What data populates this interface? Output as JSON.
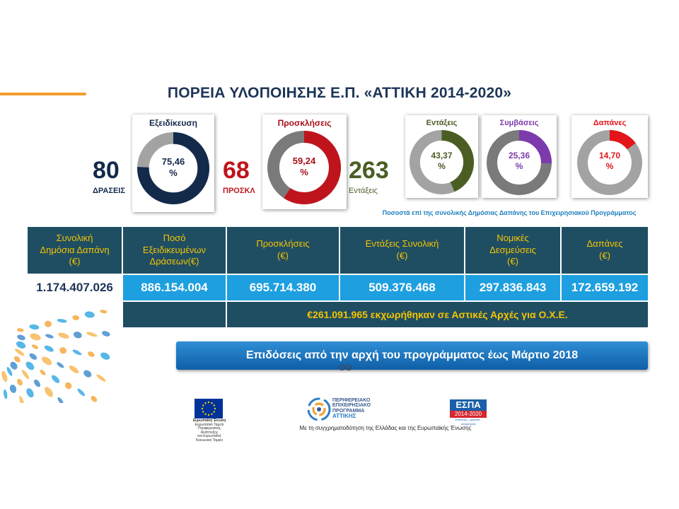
{
  "title": "ΠΟΡΕΙΑ ΥΛΟΠΟΙΗΣΗΣ Ε.Π. «ΑΤΤΙΚΗ 2014-2020»",
  "summary": {
    "actions": {
      "number": "80",
      "label": "ΔΡΑΣΕΙΣ"
    },
    "calls": {
      "number": "68",
      "label": "ΠΡΟΣΚΛ"
    },
    "inclusions": {
      "number": "263",
      "label": "Εντάξεις"
    }
  },
  "gauges": {
    "specialization": {
      "label": "Εξειδίκευση",
      "value_text": "75,46",
      "unit": "%",
      "value": 75.46,
      "color": "#132a4a",
      "track": "#a3a3a3"
    },
    "calls": {
      "label": "Προσκλήσεις",
      "value_text": "59,24",
      "unit": "%",
      "value": 59.24,
      "color": "#c0141c",
      "track": "#7a7a7a"
    },
    "inclusions": {
      "label": "Εντάξεις",
      "value_text": "43,37",
      "unit": "%",
      "value": 43.37,
      "color": "#4a5e23",
      "track": "#a3a3a3"
    },
    "contracts": {
      "label": "Συμβάσεις",
      "value_text": "25,36",
      "unit": "%",
      "value": 25.36,
      "color": "#7d3aad",
      "track": "#7a7a7a"
    },
    "expenditure": {
      "label": "Δαπάνες",
      "value_text": "14,70",
      "unit": "%",
      "value": 14.7,
      "color": "#e3151a",
      "track": "#a3a3a3"
    }
  },
  "note": "Ποσοστά επί της συνολικής Δημόσιας Δαπάνης του Επιχειρησιακού Προγράμματος",
  "table": {
    "headers": [
      [
        "Συνολική",
        "Δημόσια Δαπάνη",
        "(€)"
      ],
      [
        "Ποσό",
        "Εξειδικευμένων",
        "Δράσεων(€)"
      ],
      [
        "Προσκλήσεις",
        "(€)"
      ],
      [
        "Εντάξεις Συνολική",
        "(€)"
      ],
      [
        "Νομικές",
        "Δεσμεύσεις",
        "(€)"
      ],
      [
        "Δαπάνες",
        "(€)"
      ]
    ],
    "values": [
      "1.174.407.026",
      "886.154.004",
      "695.714.380",
      "509.376.468",
      "297.836.843",
      "172.659.192"
    ],
    "footer": "€261.091.965 εκχωρήθηκαν σε Αστικές Αρχές για Ο.Χ.Ε."
  },
  "banner": "Επιδόσεις από την αρχή του προγράμματος έως Μάρτιο 2018",
  "banner_glyph": "ʘʘ",
  "logos": {
    "eu_caption_1": "Ευρωπαϊκή Ένωση",
    "eu_caption_2": "Ευρωπαϊκό Ταμείο Περιφερειακής Ανάπτυξης",
    "eu_caption_3": "και Ευρωπαϊκό Κοινωνικό Ταμείο",
    "pep_line1": "ΠΕΡΙΦΕΡΕΙΑΚΟ",
    "pep_line2": "ΕΠΙΧΕΙΡΗΣΙΑΚΟ",
    "pep_line3": "ΠΡΟΓΡΑΜΜΑ",
    "pep_line4": "ΑΤΤΙΚΗΣ",
    "espa_title": "ΕΣΠΑ",
    "espa_years": "2014-2020",
    "espa_tagline": "ανάπτυξη - εργασία - αλληλεγγύη"
  },
  "cofinance": "Με τη συγχρηματοδότηση της Ελλάδας και της Ευρωπαϊκής Ένωσης"
}
